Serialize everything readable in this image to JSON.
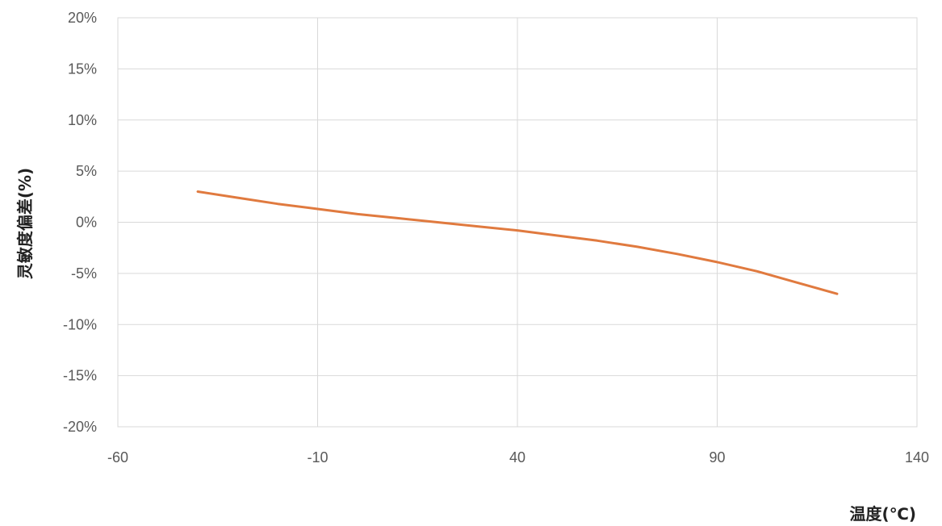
{
  "chart_data": {
    "type": "line",
    "title": "",
    "xlabel": "温度(℃)",
    "ylabel": "灵敏度偏差(%)",
    "xlim": [
      -60,
      140
    ],
    "ylim": [
      -20,
      20
    ],
    "x_ticks": [
      -60,
      -10,
      40,
      90,
      140
    ],
    "x_tick_labels": [
      "-60",
      "-10",
      "40",
      "90",
      "140"
    ],
    "y_ticks": [
      20,
      15,
      10,
      5,
      0,
      -5,
      -10,
      -15,
      -20
    ],
    "y_tick_labels": [
      "20%",
      "15%",
      "10%",
      "5%",
      "0%",
      "-5%",
      "-10%",
      "-15%",
      "-20%"
    ],
    "x_grid_values": [
      -60,
      -10,
      40,
      90,
      140
    ],
    "grid": true,
    "legend": "none",
    "series": [
      {
        "color": "#e07a3f",
        "x": [
          -40,
          -30,
          -20,
          -10,
          0,
          10,
          20,
          30,
          40,
          50,
          60,
          70,
          80,
          90,
          100,
          110,
          120
        ],
        "y": [
          3.0,
          2.4,
          1.8,
          1.3,
          0.8,
          0.4,
          0.0,
          -0.4,
          -0.8,
          -1.3,
          -1.8,
          -2.4,
          -3.1,
          -3.9,
          -4.8,
          -5.9,
          -7.0
        ]
      }
    ]
  }
}
